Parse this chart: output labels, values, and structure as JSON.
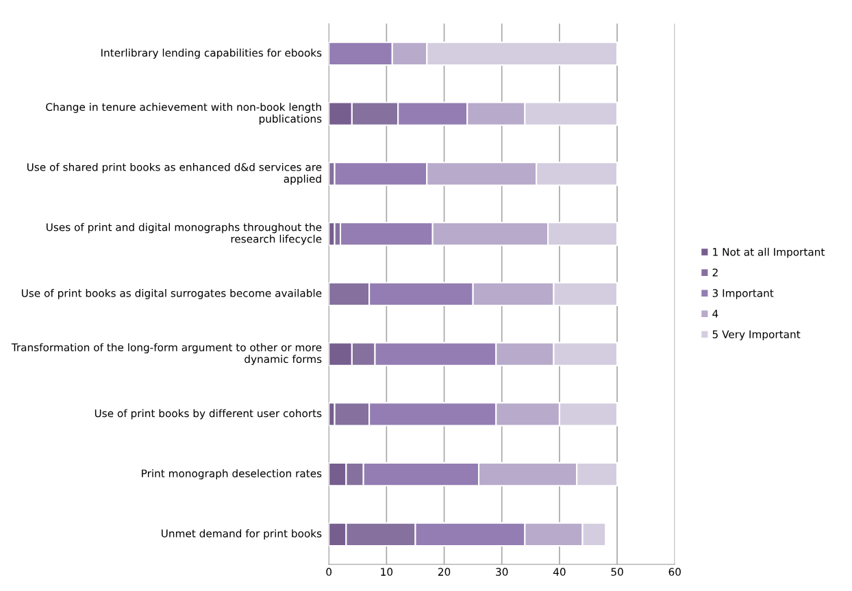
{
  "chart_data": {
    "type": "bar",
    "orientation": "horizontal",
    "stacked": true,
    "categories": [
      "Interlibrary lending capabilities for ebooks",
      "Change in tenure achievement with non-book length publications",
      "Use of shared print books as enhanced d&d services are applied",
      "Uses of print and digital monographs throughout the research lifecycle",
      "Use of print books as digital surrogates become available",
      "Transformation of the long-form argument to other or more dynamic forms",
      "Use of print books by different user cohorts",
      "Print monograph deselection rates",
      "Unmet demand for print books"
    ],
    "series": [
      {
        "name": "1 Not at all Important",
        "color": "#765e8f",
        "values": [
          0,
          4,
          0,
          1,
          0,
          4,
          1,
          3,
          3
        ]
      },
      {
        "name": "2",
        "color": "#85709e",
        "values": [
          0,
          8,
          1,
          1,
          7,
          4,
          6,
          3,
          12
        ]
      },
      {
        "name": "3 Important",
        "color": "#937db3",
        "values": [
          11,
          12,
          16,
          16,
          18,
          21,
          22,
          20,
          19
        ]
      },
      {
        "name": "4",
        "color": "#b8aacb",
        "values": [
          6,
          10,
          19,
          20,
          14,
          10,
          11,
          17,
          10
        ]
      },
      {
        "name": "5 Very Important",
        "color": "#d4cddf",
        "values": [
          33,
          16,
          14,
          12,
          11,
          11,
          10,
          7,
          4
        ]
      }
    ],
    "xlim": [
      0,
      60
    ],
    "xticks": [
      0,
      10,
      20,
      30,
      40,
      50,
      60
    ],
    "grid": "x",
    "legend": "right"
  }
}
